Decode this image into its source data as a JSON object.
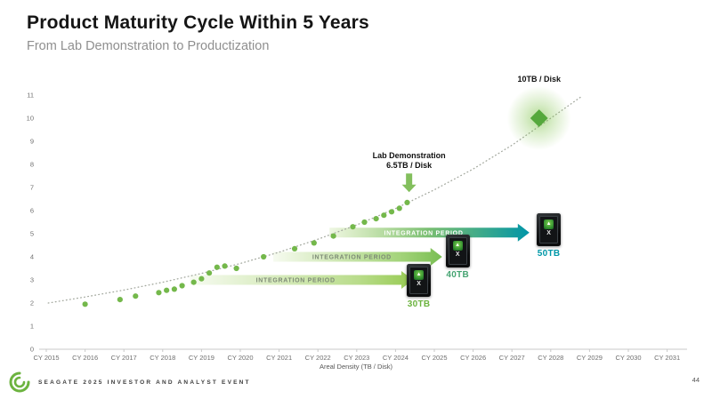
{
  "slide": {
    "title": "Product Maturity Cycle Within 5 Years",
    "subtitle": "From Lab Demonstration to Productization",
    "footer": "SEAGATE 2025 INVESTOR AND ANALYST EVENT",
    "page_number": "44"
  },
  "colors": {
    "brand_green": "#6cb33f",
    "teal": "#0095a8",
    "dot_green": "#74b84b",
    "diamond_green": "#55a83c",
    "axis_gray": "#c8c8c8"
  },
  "chart_data": {
    "type": "scatter",
    "title": "",
    "xlabel": "Areal Density (TB / Disk)",
    "x_categories": [
      "CY 2015",
      "CY 2016",
      "CY 2017",
      "CY 2018",
      "CY 2019",
      "CY 2020",
      "CY 2021",
      "CY 2022",
      "CY 2023",
      "CY 2024",
      "CY 2025",
      "CY 2026",
      "CY 2027",
      "CY 2028",
      "CY 2029",
      "CY 2030",
      "CY 2031"
    ],
    "x_range": [
      2015,
      2031
    ],
    "y_ticks": [
      0,
      1,
      2,
      3,
      4,
      5,
      6,
      7,
      8,
      9,
      10,
      11
    ],
    "y_range": [
      0,
      11
    ],
    "grid": false,
    "points": [
      [
        2016.0,
        1.95
      ],
      [
        2016.9,
        2.15
      ],
      [
        2017.3,
        2.3
      ],
      [
        2017.9,
        2.45
      ],
      [
        2018.1,
        2.55
      ],
      [
        2018.3,
        2.6
      ],
      [
        2018.5,
        2.75
      ],
      [
        2018.8,
        2.9
      ],
      [
        2019.0,
        3.05
      ],
      [
        2019.2,
        3.3
      ],
      [
        2019.4,
        3.55
      ],
      [
        2019.6,
        3.6
      ],
      [
        2019.9,
        3.5
      ],
      [
        2020.6,
        4.0
      ],
      [
        2021.4,
        4.35
      ],
      [
        2021.9,
        4.6
      ],
      [
        2022.4,
        4.9
      ],
      [
        2022.9,
        5.3
      ],
      [
        2023.2,
        5.5
      ],
      [
        2023.5,
        5.65
      ],
      [
        2023.7,
        5.8
      ],
      [
        2023.9,
        5.95
      ],
      [
        2024.1,
        6.1
      ],
      [
        2024.3,
        6.35
      ]
    ],
    "trend_line": [
      [
        2015.05,
        2.0
      ],
      [
        2016,
        2.26
      ],
      [
        2017,
        2.56
      ],
      [
        2018,
        2.9
      ],
      [
        2019,
        3.28
      ],
      [
        2020,
        3.71
      ],
      [
        2021,
        4.2
      ],
      [
        2022,
        4.76
      ],
      [
        2023,
        5.38
      ],
      [
        2024,
        6.09
      ],
      [
        2025,
        6.9
      ],
      [
        2026,
        7.8
      ],
      [
        2027,
        8.83
      ],
      [
        2028,
        10.0
      ],
      [
        2028.8,
        10.95
      ]
    ],
    "milestone": {
      "x": 2027.7,
      "y": 10,
      "label": "10TB / Disk"
    },
    "lab_annotation": {
      "lines": [
        "Lab Demonstration",
        "6.5TB / Disk"
      ],
      "x": 2024.35,
      "arrow_tip_y": 6.8
    },
    "arrows": [
      {
        "label": "INTEGRATION PERIOD",
        "y": 3.0,
        "x_start": 2018.7,
        "x_end": 2024.45,
        "label_color": "#7d8a76",
        "gradient": [
          [
            0,
            "rgba(139,197,63,0.07)"
          ],
          [
            0.75,
            "rgba(139,197,63,0.6)"
          ],
          [
            1,
            "rgba(139,197,63,0.9)"
          ]
        ]
      },
      {
        "label": "INTEGRATION PERIOD",
        "y": 4.0,
        "x_start": 2020.85,
        "x_end": 2025.2,
        "label_color": "#7d8a76",
        "gradient": [
          [
            0,
            "rgba(139,197,63,0.08)"
          ],
          [
            0.75,
            "rgba(124,193,66,0.7)"
          ],
          [
            1,
            "rgba(113,186,74,0.95)"
          ]
        ]
      },
      {
        "label": "INTEGRATION PERIOD",
        "y": 5.05,
        "x_start": 2022.3,
        "x_end": 2027.45,
        "label_color": "#ffffff",
        "gradient": [
          [
            0,
            "rgba(139,197,63,0.15)"
          ],
          [
            0.5,
            "rgba(96,178,89,0.85)"
          ],
          [
            1,
            "#0095a8"
          ]
        ]
      }
    ],
    "disks": [
      {
        "capacity": "30TB",
        "badge": "X",
        "x": 2024.6,
        "top_y": 3.7,
        "label_color": "#6cb33f"
      },
      {
        "capacity": "40TB",
        "badge": "X",
        "x": 2025.6,
        "top_y": 4.95,
        "label_color": "#46a472"
      },
      {
        "capacity": "50TB",
        "badge": "X",
        "x": 2027.95,
        "top_y": 5.9,
        "label_color": "#0098a8"
      }
    ]
  }
}
